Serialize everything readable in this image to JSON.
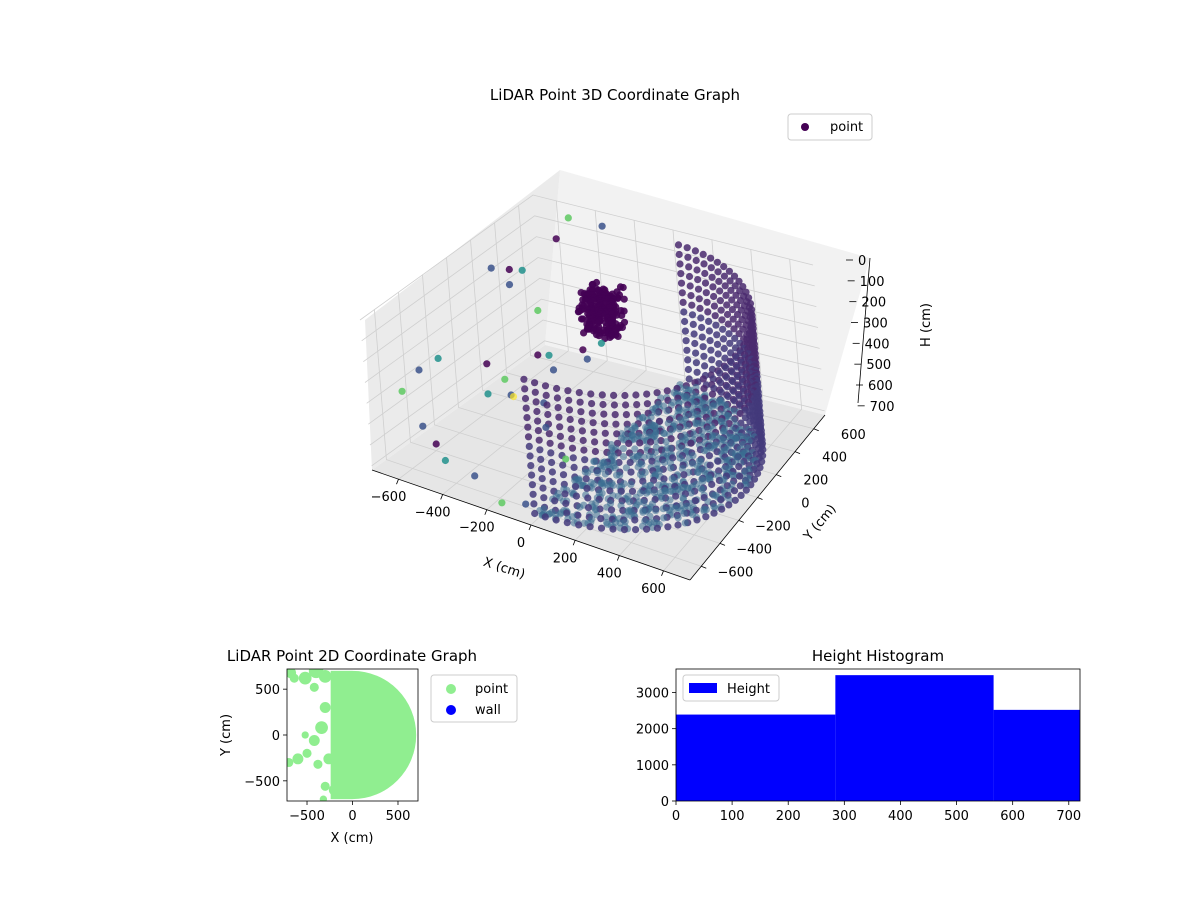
{
  "chart_data": [
    {
      "type": "scatter",
      "subtype": "3d",
      "title": "LiDAR Point 3D Coordinate Graph",
      "xlabel": "X (cm)",
      "ylabel": "Y (cm)",
      "zlabel": "H (cm)",
      "xlim": [
        -720,
        720
      ],
      "ylim": [
        -720,
        720
      ],
      "zlim": [
        0,
        720
      ],
      "z_inverted": true,
      "xticks": [
        -600,
        -400,
        -200,
        0,
        200,
        400,
        600
      ],
      "yticks": [
        -600,
        -400,
        -200,
        0,
        200,
        400,
        600
      ],
      "zticks": [
        0,
        100,
        200,
        300,
        400,
        500,
        600,
        700
      ],
      "legend": {
        "label": "point",
        "position": "upper-right"
      },
      "colormap": "viridis",
      "grid": true,
      "shape_description": "dense cylindrical wall of points over the right half-disc (radius ~700 cm, angles -90 to 90 deg) plus a dense floor, a cluster near (-150, 150, 50-200) and sparse outliers",
      "points": [
        [
          -640,
          220,
          120
        ],
        [
          -600,
          300,
          150
        ],
        [
          -560,
          340,
          160
        ],
        [
          -580,
          260,
          200
        ],
        [
          -480,
          620,
          10
        ],
        [
          -320,
          640,
          20
        ],
        [
          -500,
          540,
          80
        ],
        [
          -640,
          -260,
          350
        ],
        [
          -700,
          -320,
          400
        ],
        [
          -680,
          -500,
          420
        ],
        [
          -560,
          -560,
          520
        ],
        [
          -480,
          -600,
          560
        ],
        [
          -420,
          -640,
          600
        ],
        [
          -300,
          -620,
          640
        ],
        [
          -160,
          -660,
          700
        ],
        [
          -60,
          -640,
          680
        ],
        [
          -380,
          120,
          420
        ],
        [
          -300,
          80,
          380
        ],
        [
          -260,
          40,
          420
        ],
        [
          -420,
          -100,
          450
        ],
        [
          -360,
          -160,
          480
        ],
        [
          -200,
          200,
          380
        ],
        [
          -140,
          260,
          360
        ],
        [
          -100,
          60,
          330
        ],
        [
          -460,
          280,
          300
        ],
        [
          -250,
          -80,
          520
        ],
        [
          -600,
          60,
          500
        ],
        [
          -520,
          -80,
          560
        ],
        [
          -180,
          -200,
          560
        ],
        [
          -40,
          -300,
          620
        ]
      ],
      "colors": {
        "dark": "#440154",
        "mid_dark": "#3b528b",
        "mid": "#21918c",
        "light": "#5ec962",
        "bright": "#fde725",
        "wall_front": "#433a7b",
        "wall_back": "#4a2a6e",
        "floor": "#3a6d92"
      }
    },
    {
      "type": "scatter",
      "title": "LiDAR Point 2D Coordinate Graph",
      "xlabel": "X (cm)",
      "ylabel": "Y (cm)",
      "xlim": [
        -720,
        720
      ],
      "ylim": [
        -720,
        720
      ],
      "xticks": [
        -500,
        0,
        500
      ],
      "yticks": [
        -500,
        0,
        500
      ],
      "legend": {
        "entries": [
          "point",
          "wall"
        ],
        "position": "outside-right"
      },
      "series": [
        {
          "name": "point",
          "color": "#90ee90",
          "region": "half-disc x >= 0, radius ~700 cm, plus blobs on the left side"
        },
        {
          "name": "wall",
          "color": "#0000ff",
          "points": []
        }
      ]
    },
    {
      "type": "bar",
      "subtype": "histogram",
      "title": "Height Histogram",
      "xlim": [
        0,
        720
      ],
      "ylim": [
        0,
        3650
      ],
      "xticks": [
        0,
        100,
        200,
        300,
        400,
        500,
        600,
        700
      ],
      "yticks": [
        0,
        1000,
        2000,
        3000
      ],
      "legend": {
        "label": "Height",
        "position": "upper-left"
      },
      "color": "#0000ff",
      "bins": [
        {
          "start": 0,
          "end": 284,
          "count": 2390
        },
        {
          "start": 284,
          "end": 566,
          "count": 3480
        },
        {
          "start": 566,
          "end": 720,
          "count": 2520
        }
      ]
    }
  ]
}
